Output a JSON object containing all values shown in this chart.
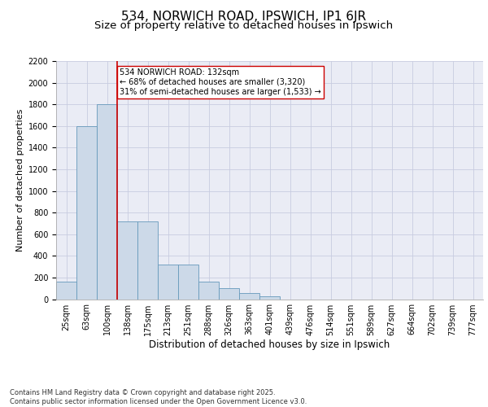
{
  "title": "534, NORWICH ROAD, IPSWICH, IP1 6JR",
  "subtitle": "Size of property relative to detached houses in Ipswich",
  "xlabel": "Distribution of detached houses by size in Ipswich",
  "ylabel": "Number of detached properties",
  "bar_labels": [
    "25sqm",
    "63sqm",
    "100sqm",
    "138sqm",
    "175sqm",
    "213sqm",
    "251sqm",
    "288sqm",
    "326sqm",
    "363sqm",
    "401sqm",
    "439sqm",
    "476sqm",
    "514sqm",
    "551sqm",
    "589sqm",
    "627sqm",
    "664sqm",
    "702sqm",
    "739sqm",
    "777sqm"
  ],
  "bar_values": [
    160,
    1600,
    1800,
    720,
    720,
    320,
    320,
    160,
    100,
    55,
    25,
    0,
    0,
    0,
    0,
    0,
    0,
    0,
    0,
    0,
    0
  ],
  "bar_color": "#ccd9e8",
  "bar_edge_color": "#6699bb",
  "vline_color": "#cc0000",
  "annotation_text": "534 NORWICH ROAD: 132sqm\n← 68% of detached houses are smaller (3,320)\n31% of semi-detached houses are larger (1,533) →",
  "annotation_box_facecolor": "white",
  "annotation_box_edgecolor": "#cc0000",
  "ylim_max": 2200,
  "yticks": [
    0,
    200,
    400,
    600,
    800,
    1000,
    1200,
    1400,
    1600,
    1800,
    2000,
    2200
  ],
  "grid_color": "#c8cce0",
  "plot_bg_color": "#eaecf5",
  "footer_line1": "Contains HM Land Registry data © Crown copyright and database right 2025.",
  "footer_line2": "Contains public sector information licensed under the Open Government Licence v3.0.",
  "title_fontsize": 11,
  "subtitle_fontsize": 9.5,
  "ylabel_fontsize": 8,
  "xlabel_fontsize": 8.5,
  "tick_fontsize": 7,
  "annot_fontsize": 7,
  "footer_fontsize": 6
}
